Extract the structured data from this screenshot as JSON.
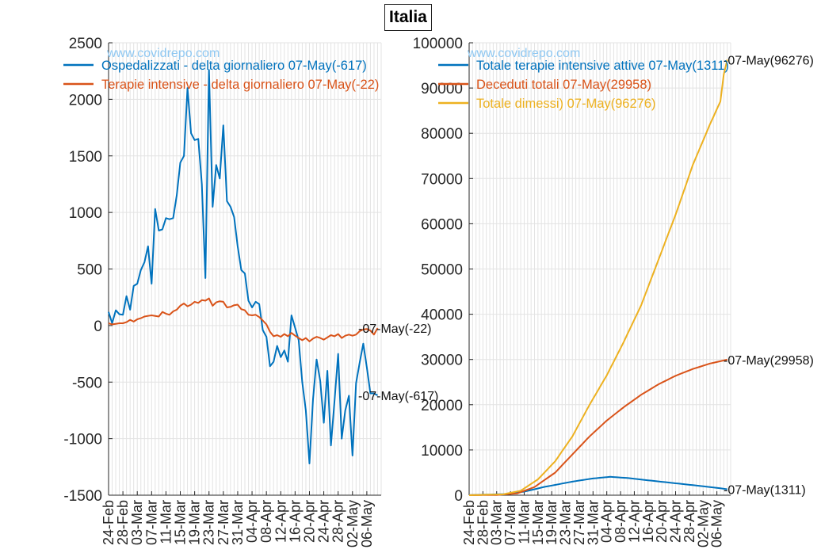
{
  "figure_title": "Italia",
  "watermark": "www.covidrepo.com",
  "colors": {
    "blue": "#0072BD",
    "orange": "#D95319",
    "yellow": "#EDB120",
    "watermark": "#8FC8F2",
    "grid": "#e3e3e3",
    "axis": "#262626"
  },
  "date_ticks": [
    "24-Feb",
    "28-Feb",
    "03-Mar",
    "07-Mar",
    "11-Mar",
    "15-Mar",
    "19-Mar",
    "23-Mar",
    "27-Mar",
    "31-Mar",
    "04-Apr",
    "08-Apr",
    "12-Apr",
    "16-Apr",
    "20-Apr",
    "24-Apr",
    "28-Apr",
    "02-May",
    "06-May"
  ],
  "chart_data": [
    {
      "type": "line",
      "start_date": "24-Feb",
      "end_date": "07-May",
      "ylim": [
        -1500,
        2500
      ],
      "yticks": [
        -1500,
        -1000,
        -500,
        0,
        500,
        1000,
        1500,
        2000,
        2500
      ],
      "grid": true,
      "legend_position": "top-left",
      "series": [
        {
          "name": "Ospedalizzati - delta giornaliero 07-May(-617)",
          "color": "#0072BD",
          "end_label": "-07-May(-617)",
          "values": [
            120,
            20,
            135,
            100,
            95,
            260,
            140,
            350,
            370,
            490,
            560,
            700,
            370,
            1030,
            840,
            850,
            950,
            940,
            950,
            1150,
            1440,
            1500,
            2100,
            1700,
            1640,
            1650,
            1250,
            420,
            2260,
            1050,
            1420,
            1300,
            1770,
            1100,
            1050,
            960,
            700,
            490,
            460,
            220,
            160,
            210,
            190,
            -40,
            -100,
            -360,
            -320,
            -180,
            -280,
            -220,
            -320,
            90,
            -20,
            -130,
            -500,
            -750,
            -1220,
            -650,
            -300,
            -490,
            -860,
            -400,
            -1060,
            -660,
            -250,
            -1000,
            -750,
            -620,
            -1150,
            -510,
            -330,
            -160,
            -370,
            -600,
            -600,
            -617
          ]
        },
        {
          "name": "Terapie intensive - delta giornaliero 07-May(-22)",
          "color": "#D95319",
          "end_label": "-07-May(-22)",
          "values": [
            20,
            10,
            15,
            20,
            20,
            30,
            50,
            35,
            55,
            65,
            80,
            85,
            90,
            85,
            80,
            120,
            105,
            95,
            125,
            140,
            175,
            195,
            170,
            185,
            210,
            200,
            225,
            220,
            240,
            175,
            205,
            215,
            210,
            160,
            165,
            180,
            185,
            145,
            135,
            95,
            90,
            95,
            75,
            45,
            10,
            -55,
            -95,
            -85,
            -100,
            -75,
            -95,
            -65,
            -90,
            -110,
            -130,
            -110,
            -140,
            -115,
            -100,
            -110,
            -125,
            -105,
            -85,
            -95,
            -75,
            -110,
            -90,
            -80,
            -90,
            -80,
            -50,
            -35,
            -30,
            -45,
            -80,
            -22
          ]
        }
      ]
    },
    {
      "type": "line",
      "start_date": "24-Feb",
      "end_date": "07-May",
      "ylim": [
        0,
        100000
      ],
      "yticks": [
        0,
        10000,
        20000,
        30000,
        40000,
        50000,
        60000,
        70000,
        80000,
        90000,
        100000
      ],
      "grid": true,
      "legend_position": "top-left",
      "series": [
        {
          "name": "Totale terapie intensive attive 07-May(1311)",
          "color": "#0072BD",
          "end_label": "-07-May(1311)",
          "knots": [
            [
              0,
              26
            ],
            [
              10,
              230
            ],
            [
              16,
              790
            ],
            [
              22,
              1850
            ],
            [
              30,
              3000
            ],
            [
              36,
              3700
            ],
            [
              41,
              4068
            ],
            [
              46,
              3800
            ],
            [
              52,
              3300
            ],
            [
              58,
              2800
            ],
            [
              64,
              2300
            ],
            [
              70,
              1800
            ],
            [
              74,
              1427
            ],
            [
              75,
              1311
            ]
          ]
        },
        {
          "name": "Deceduti totali 07-May(29958)",
          "color": "#D95319",
          "end_label": "-07-May(29958)",
          "knots": [
            [
              0,
              7
            ],
            [
              8,
              50
            ],
            [
              14,
              400
            ],
            [
              19,
              1800
            ],
            [
              25,
              5000
            ],
            [
              30,
              9000
            ],
            [
              35,
              13000
            ],
            [
              40,
              16500
            ],
            [
              45,
              19500
            ],
            [
              50,
              22200
            ],
            [
              55,
              24500
            ],
            [
              60,
              26400
            ],
            [
              65,
              27900
            ],
            [
              70,
              29100
            ],
            [
              75,
              29958
            ]
          ]
        },
        {
          "name": "Totale dimessi) 07-May(96276)",
          "color": "#EDB120",
          "end_label": "-07-May(96276)",
          "knots": [
            [
              0,
              1
            ],
            [
              10,
              200
            ],
            [
              15,
              1000
            ],
            [
              20,
              3500
            ],
            [
              25,
              7500
            ],
            [
              30,
              13000
            ],
            [
              35,
              20000
            ],
            [
              40,
              26500
            ],
            [
              45,
              34000
            ],
            [
              50,
              42000
            ],
            [
              55,
              52000
            ],
            [
              60,
              62000
            ],
            [
              65,
              73000
            ],
            [
              70,
              82000
            ],
            [
              73,
              87000
            ],
            [
              74,
              93000
            ],
            [
              75,
              96276
            ]
          ]
        }
      ]
    }
  ]
}
